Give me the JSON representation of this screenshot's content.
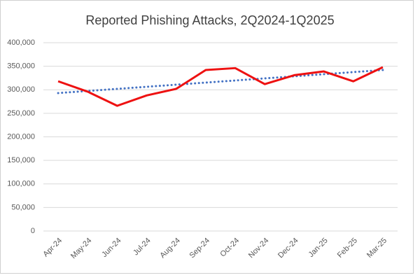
{
  "chart_data": {
    "type": "line",
    "title": "Reported Phishing Attacks, 2Q2024-1Q2025",
    "categories": [
      "Apr-24",
      "May-24",
      "Jun-24",
      "Jul-24",
      "Aug-24",
      "Sep-24",
      "Oct-24",
      "Nov-24",
      "Dec-24",
      "Jan-25",
      "Feb-25",
      "Mar-25"
    ],
    "values": [
      318000,
      296000,
      266000,
      288000,
      302000,
      342000,
      346000,
      312000,
      331000,
      339000,
      318000,
      348000
    ],
    "color": "#ee1111",
    "trendline": {
      "color": "#4472c4",
      "values": [
        293000,
        342000
      ]
    },
    "ylim": [
      0,
      400000
    ],
    "yticks": [
      {
        "value": 0,
        "label": "0"
      },
      {
        "value": 50000,
        "label": "50,000"
      },
      {
        "value": 100000,
        "label": "100,000"
      },
      {
        "value": 150000,
        "label": "150,000"
      },
      {
        "value": 200000,
        "label": "200,000"
      },
      {
        "value": 250000,
        "label": "250,000"
      },
      {
        "value": 300000,
        "label": "300,000"
      },
      {
        "value": 350000,
        "label": "350,000"
      },
      {
        "value": 400000,
        "label": "400,000"
      }
    ],
    "grid": true
  }
}
